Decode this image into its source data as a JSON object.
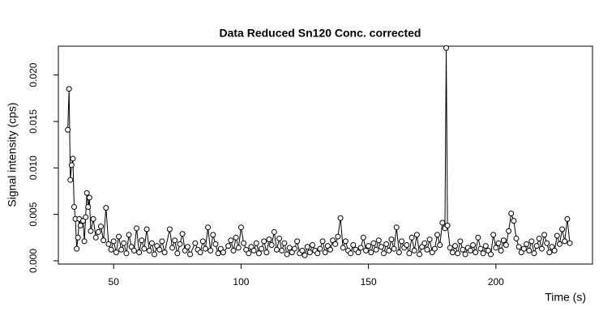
{
  "chart_data": {
    "type": "line",
    "title": "Data Reduced Sn120 Conc. corrected",
    "x_label": "Time (s)",
    "y_label": "Signal intensity (cps)",
    "color": "#000000",
    "markers": true,
    "x": [
      32,
      32.5,
      33,
      33.5,
      34,
      34.5,
      35,
      35.5,
      36,
      36.5,
      37,
      38,
      38.5,
      39,
      39.5,
      40,
      40.5,
      41,
      42,
      43,
      44,
      45,
      46,
      47,
      48,
      49,
      50,
      51,
      52,
      53,
      54,
      55,
      56,
      57,
      58,
      59,
      60,
      61,
      62,
      63,
      64,
      65,
      66,
      67,
      68,
      69,
      70,
      72,
      73,
      74,
      75,
      76,
      77,
      78,
      79,
      80,
      82,
      83,
      84,
      85,
      86,
      87,
      88,
      89,
      90,
      91,
      92,
      93,
      95,
      96,
      97,
      98,
      99,
      100,
      101,
      102,
      103,
      104,
      105,
      106,
      107,
      108,
      109,
      110,
      111,
      112,
      113,
      114,
      115,
      116,
      117,
      118,
      119,
      120,
      121,
      122,
      123,
      124,
      125,
      126,
      127,
      128,
      129,
      130,
      131,
      132,
      133,
      134,
      135,
      136,
      137,
      138,
      139,
      140,
      141,
      142,
      143,
      144,
      145,
      146,
      147,
      148,
      149,
      150,
      151,
      152,
      153,
      154,
      155,
      156,
      157,
      158,
      159,
      160,
      161,
      162,
      163,
      164,
      165,
      166,
      167,
      168,
      169,
      170,
      171,
      172,
      173,
      174,
      175,
      176,
      177,
      178,
      179,
      180,
      180.5,
      181,
      182,
      183,
      184,
      185,
      186,
      187,
      188,
      189,
      190,
      191,
      192,
      193,
      194,
      195,
      196,
      197,
      198,
      199,
      200,
      201,
      202,
      203,
      204,
      205,
      206,
      207,
      208,
      209,
      210,
      211,
      212,
      213,
      214,
      215,
      216,
      217,
      218,
      219,
      220,
      221,
      222,
      223,
      224,
      225,
      226,
      227,
      228,
      229
    ],
    "values": [
      0.0141,
      0.0185,
      0.0087,
      0.0103,
      0.011,
      0.0058,
      0.0045,
      0.0013,
      0.0025,
      0.0045,
      0.0038,
      0.0043,
      0.0021,
      0.0047,
      0.0073,
      0.0058,
      0.0068,
      0.0032,
      0.0045,
      0.0025,
      0.0031,
      0.0037,
      0.0022,
      0.0057,
      0.0018,
      0.0012,
      0.0021,
      0.0009,
      0.0026,
      0.0012,
      0.0019,
      0.0008,
      0.0028,
      0.0015,
      0.0011,
      0.0035,
      0.0009,
      0.0022,
      0.0013,
      0.0034,
      0.0011,
      0.0019,
      0.0007,
      0.0016,
      0.0012,
      0.0021,
      0.0009,
      0.0034,
      0.0014,
      0.0022,
      0.0008,
      0.0018,
      0.0029,
      0.0011,
      0.0015,
      0.0007,
      0.0019,
      0.0012,
      0.0009,
      0.0021,
      0.0013,
      0.0036,
      0.0011,
      0.0028,
      0.0018,
      0.0008,
      0.0013,
      0.0009,
      0.0016,
      0.0022,
      0.0011,
      0.0025,
      0.0014,
      0.0036,
      0.0019,
      0.0012,
      0.0008,
      0.0015,
      0.0011,
      0.0019,
      0.0008,
      0.0013,
      0.0021,
      0.0009,
      0.0023,
      0.0017,
      0.0031,
      0.0012,
      0.0024,
      0.0011,
      0.0019,
      0.0007,
      0.0014,
      0.0009,
      0.0013,
      0.0021,
      0.0008,
      0.0011,
      0.0006,
      0.0015,
      0.0009,
      0.0017,
      0.0011,
      0.0008,
      0.0013,
      0.0021,
      0.0009,
      0.0016,
      0.0012,
      0.0022,
      0.0018,
      0.0026,
      0.0046,
      0.0014,
      0.0021,
      0.0011,
      0.0008,
      0.0017,
      0.0012,
      0.0009,
      0.0014,
      0.0025,
      0.0011,
      0.0016,
      0.0009,
      0.0019,
      0.0012,
      0.0022,
      0.0015,
      0.0008,
      0.0018,
      0.0011,
      0.0023,
      0.0013,
      0.0036,
      0.0009,
      0.0021,
      0.0014,
      0.0017,
      0.0008,
      0.0025,
      0.0011,
      0.0028,
      0.0007,
      0.0015,
      0.0019,
      0.0012,
      0.0023,
      0.0009,
      0.0013,
      0.0028,
      0.0017,
      0.0041,
      0.0035,
      0.0229,
      0.0038,
      0.0014,
      0.0009,
      0.0016,
      0.0008,
      0.0021,
      0.0012,
      0.0007,
      0.0014,
      0.0011,
      0.0017,
      0.0009,
      0.0025,
      0.0013,
      0.0008,
      0.0016,
      0.0011,
      0.0007,
      0.0028,
      0.0014,
      0.0019,
      0.0011,
      0.0022,
      0.0017,
      0.0032,
      0.0051,
      0.0043,
      0.0024,
      0.0015,
      0.0009,
      0.0013,
      0.0018,
      0.0011,
      0.0021,
      0.0008,
      0.0016,
      0.0024,
      0.0013,
      0.0028,
      0.0019,
      0.0009,
      0.0015,
      0.0011,
      0.0027,
      0.0018,
      0.0034,
      0.0021,
      0.0045,
      0.0019
    ],
    "xlim": [
      28.3,
      237.9
    ],
    "xticks": [
      50,
      100,
      150,
      200
    ],
    "ylim": [
      -0.00035,
      0.0231
    ],
    "yticks": [
      {
        "value": 0,
        "label": "0.000"
      },
      {
        "value": 0.005,
        "label": "0.005"
      },
      {
        "value": 0.01,
        "label": "0.010"
      },
      {
        "value": 0.015,
        "label": "0.015"
      },
      {
        "value": 0.02,
        "label": "0.020"
      }
    ]
  }
}
